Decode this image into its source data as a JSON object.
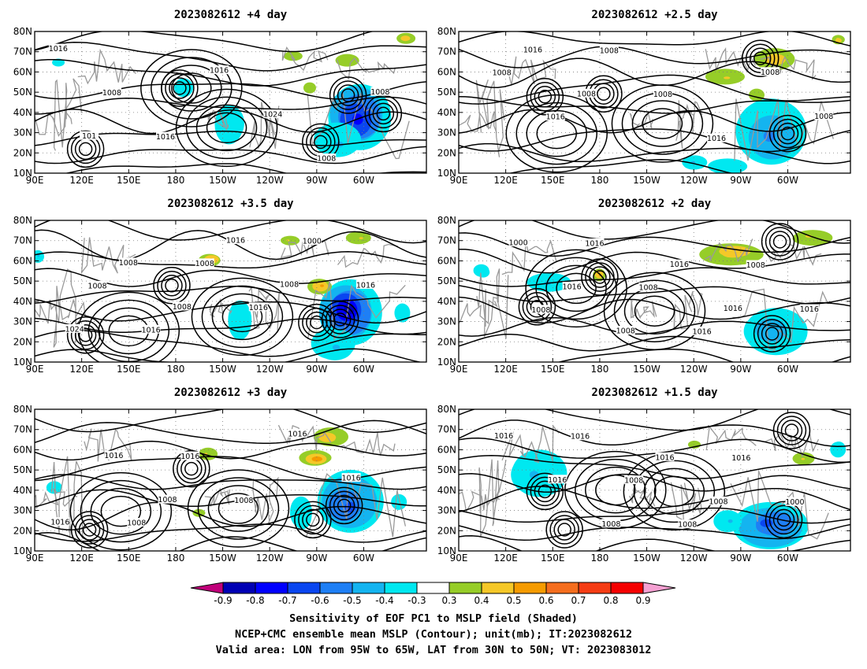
{
  "panels": [
    {
      "title": "2023082612 +4 day",
      "lead_days": 4
    },
    {
      "title": "2023082612 +2.5 day",
      "lead_days": 2.5
    },
    {
      "title": "2023082612 +3.5 day",
      "lead_days": 3.5
    },
    {
      "title": "2023082612 +2 day",
      "lead_days": 2
    },
    {
      "title": "2023082612 +3 day",
      "lead_days": 3
    },
    {
      "title": "2023082612 +1.5 day",
      "lead_days": 1.5
    }
  ],
  "axes": {
    "lon_ticks": [
      "90E",
      "120E",
      "150E",
      "180",
      "150W",
      "120W",
      "90W",
      "60W"
    ],
    "lat_ticks": [
      "80N",
      "70N",
      "60N",
      "50N",
      "40N",
      "30N",
      "20N",
      "10N"
    ],
    "lon_range": [
      90,
      340
    ],
    "lat_range": [
      10,
      80
    ]
  },
  "contour_labels": [
    [
      "1016",
      "1008",
      "1016",
      "1016",
      "1024",
      "1008",
      "1008",
      "101"
    ],
    [
      "1008",
      "1016",
      "1008",
      "1008",
      "1016",
      "1008",
      "1008",
      "1016",
      "1008"
    ],
    [
      "1008",
      "1016",
      "1008",
      "1016",
      "1000",
      "1016",
      "1024",
      "1008",
      "1008",
      "1016",
      "1008"
    ],
    [
      "1008",
      "1016",
      "1008",
      "1016",
      "1008",
      "1016",
      "1000",
      "1016",
      "1008",
      "1016",
      "1016"
    ],
    [
      "1008",
      "1016",
      "1008",
      "1016",
      "1016",
      "1016",
      "1016",
      "1008"
    ],
    [
      "1016",
      "1008",
      "1008",
      "1016",
      "1000",
      "1016",
      "1016",
      "1008",
      "1016",
      "1008"
    ]
  ],
  "colorbar": {
    "labels": [
      "-0.9",
      "-0.8",
      "-0.7",
      "-0.6",
      "-0.5",
      "-0.4",
      "-0.3",
      "0.3",
      "0.4",
      "0.5",
      "0.6",
      "0.7",
      "0.8",
      "0.9"
    ],
    "colors": [
      "#c0007a",
      "#0000b4",
      "#0000ff",
      "#0a46f0",
      "#1e7ff5",
      "#14b4f0",
      "#00e8f0",
      "#ffffff",
      "#96cd28",
      "#f5c828",
      "#f59b00",
      "#f56e1e",
      "#f53c14",
      "#f50000",
      "#f5a0d2"
    ]
  },
  "caption": {
    "line1": "Sensitivity of EOF PC1 to MSLP field (Shaded)",
    "line2": "NCEP+CMC ensemble mean MSLP (Contour); unit(mb); IT:2023082612",
    "line3": "Valid area: LON from 95W to 65W, LAT from 30N to 50N; VT: 2023083012"
  }
}
